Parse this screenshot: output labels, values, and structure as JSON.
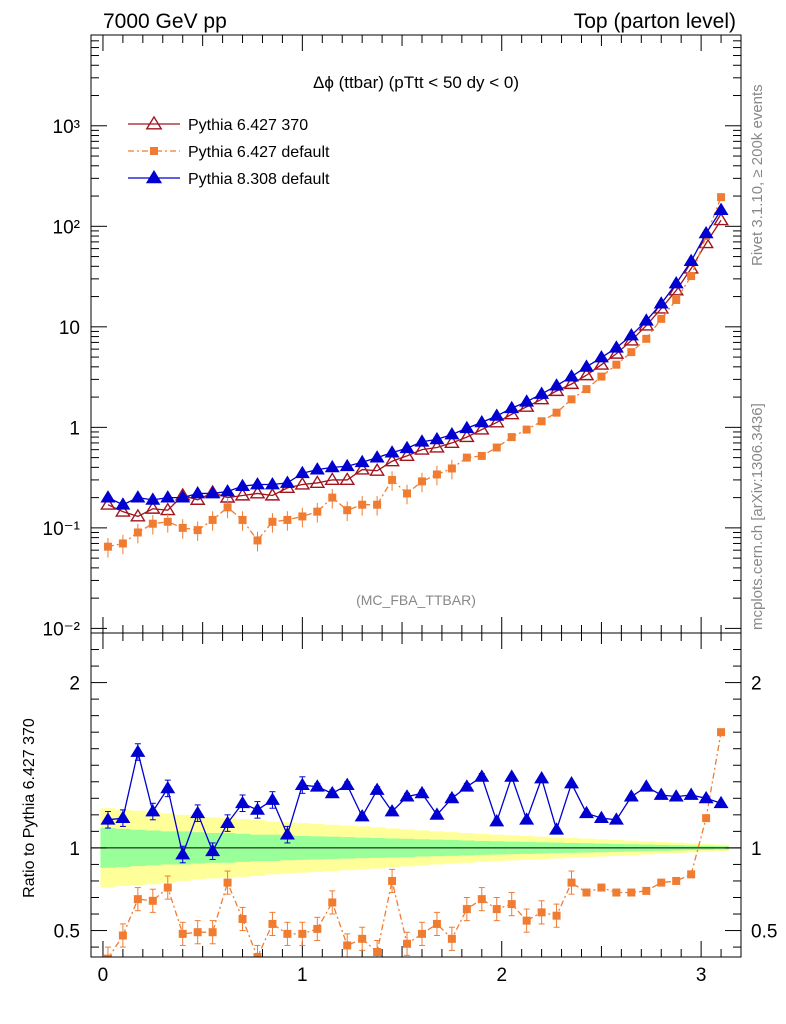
{
  "header": {
    "left": "7000 GeV pp",
    "right": "Top (parton level)"
  },
  "side": {
    "rivet": "Rivet 3.1.10, ≥ 200k events",
    "mcplots": "mcplots.cern.ch [arXiv:1306.3436]"
  },
  "chart_data": [
    {
      "type": "line",
      "title": "Δϕ (ttbar) (pTtt < 50 dy < 0)",
      "annotation": "(MC_FBA_TTBAR)",
      "yscale": "log",
      "xlim": [
        -0.06,
        3.2
      ],
      "ylim": [
        0.009,
        8000
      ],
      "x_ticks": [
        "0",
        "1",
        "2",
        "3"
      ],
      "y_ticks": [
        "10⁻²",
        "10⁻¹",
        "1",
        "10",
        "10²",
        "10³"
      ],
      "legend_position": "top-left",
      "x": [
        0.025,
        0.1,
        0.175,
        0.25,
        0.325,
        0.4,
        0.475,
        0.55,
        0.625,
        0.7,
        0.775,
        0.85,
        0.925,
        1.0,
        1.075,
        1.15,
        1.225,
        1.3,
        1.375,
        1.45,
        1.525,
        1.6,
        1.675,
        1.75,
        1.825,
        1.9,
        1.975,
        2.05,
        2.125,
        2.2,
        2.275,
        2.35,
        2.425,
        2.5,
        2.575,
        2.65,
        2.725,
        2.8,
        2.875,
        2.95,
        3.025,
        3.1
      ],
      "series": [
        {
          "name": "Pythia 6.427 370",
          "color": "#a0141e",
          "marker": "open-triangle",
          "values": [
            0.17,
            0.145,
            0.13,
            0.155,
            0.15,
            0.21,
            0.19,
            0.225,
            0.2,
            0.21,
            0.22,
            0.21,
            0.25,
            0.27,
            0.28,
            0.3,
            0.3,
            0.38,
            0.37,
            0.46,
            0.52,
            0.6,
            0.63,
            0.7,
            0.8,
            0.95,
            1.12,
            1.35,
            1.6,
            1.9,
            2.3,
            2.7,
            3.3,
            4.2,
            5.4,
            7.3,
            10.3,
            15.2,
            23,
            38,
            68,
            115
          ]
        },
        {
          "name": "Pythia 6.427 default",
          "color": "#f07c32",
          "marker": "filled-square",
          "dashed": true,
          "values": [
            0.065,
            0.07,
            0.09,
            0.11,
            0.115,
            0.1,
            0.095,
            0.12,
            0.16,
            0.12,
            0.075,
            0.115,
            0.12,
            0.13,
            0.145,
            0.2,
            0.15,
            0.17,
            0.17,
            0.3,
            0.22,
            0.29,
            0.34,
            0.39,
            0.5,
            0.52,
            0.63,
            0.8,
            0.95,
            1.15,
            1.4,
            1.9,
            2.4,
            3.2,
            4.2,
            5.6,
            7.6,
            12,
            18.5,
            32,
            80,
            195
          ]
        },
        {
          "name": "Pythia 8.308 default",
          "color": "#0000d0",
          "marker": "filled-triangle",
          "values": [
            0.2,
            0.17,
            0.2,
            0.19,
            0.2,
            0.2,
            0.22,
            0.22,
            0.23,
            0.26,
            0.27,
            0.27,
            0.28,
            0.35,
            0.38,
            0.4,
            0.41,
            0.45,
            0.5,
            0.56,
            0.62,
            0.72,
            0.76,
            0.85,
            0.98,
            1.12,
            1.3,
            1.55,
            1.8,
            2.15,
            2.6,
            3.2,
            4,
            4.95,
            6.2,
            8.2,
            11.5,
            17,
            27,
            45,
            85,
            145
          ]
        }
      ]
    },
    {
      "type": "line",
      "ylabel": "Ratio to Pythia 6.427 370",
      "xlim": [
        -0.06,
        3.2
      ],
      "ylim": [
        0.34,
        2.3
      ],
      "x_ticks": [
        "0",
        "1",
        "2",
        "3"
      ],
      "y_ticks": [
        "0.5",
        "1",
        "2"
      ],
      "reference_line": 1,
      "bands": {
        "inner_color": "#99ff99",
        "outer_color": "#ffff99",
        "inner": [
          0.12,
          0.115,
          0.11,
          0.105,
          0.1,
          0.1,
          0.095,
          0.09,
          0.09,
          0.085,
          0.08,
          0.08,
          0.075,
          0.072,
          0.07,
          0.068,
          0.065,
          0.062,
          0.06,
          0.057,
          0.055,
          0.052,
          0.05,
          0.048,
          0.045,
          0.042,
          0.04,
          0.038,
          0.036,
          0.034,
          0.032,
          0.03,
          0.028,
          0.026,
          0.024,
          0.022,
          0.02,
          0.018,
          0.016,
          0.014,
          0.012,
          0.01
        ],
        "outer": [
          0.24,
          0.23,
          0.225,
          0.22,
          0.21,
          0.2,
          0.19,
          0.185,
          0.18,
          0.175,
          0.17,
          0.16,
          0.155,
          0.15,
          0.145,
          0.14,
          0.135,
          0.13,
          0.125,
          0.118,
          0.112,
          0.106,
          0.1,
          0.095,
          0.09,
          0.085,
          0.08,
          0.076,
          0.072,
          0.068,
          0.064,
          0.06,
          0.056,
          0.052,
          0.048,
          0.044,
          0.04,
          0.036,
          0.032,
          0.028,
          0.024,
          0.02
        ]
      },
      "series": [
        {
          "name": "Pythia 6.427 default",
          "color": "#f07c32",
          "marker": "filled-square",
          "dashed": true,
          "values": [
            0.33,
            0.47,
            0.69,
            0.68,
            0.76,
            0.48,
            0.49,
            0.49,
            0.79,
            0.57,
            0.34,
            0.54,
            0.48,
            0.48,
            0.51,
            0.67,
            0.41,
            0.45,
            0.37,
            0.8,
            0.42,
            0.48,
            0.54,
            0.45,
            0.63,
            0.69,
            0.63,
            0.66,
            0.56,
            0.61,
            0.59,
            0.79,
            0.73,
            0.76,
            0.73,
            0.73,
            0.74,
            0.79,
            0.8,
            0.84,
            1.18,
            1.7
          ]
        },
        {
          "name": "Pythia 8.308 default",
          "color": "#0000d0",
          "marker": "filled-triangle",
          "values": [
            1.17,
            1.18,
            1.58,
            1.22,
            1.36,
            0.96,
            1.21,
            0.98,
            1.15,
            1.27,
            1.23,
            1.29,
            1.08,
            1.38,
            1.37,
            1.33,
            1.38,
            1.19,
            1.35,
            1.22,
            1.31,
            1.33,
            1.2,
            1.3,
            1.37,
            1.43,
            1.16,
            1.43,
            1.17,
            1.42,
            1.11,
            1.39,
            1.21,
            1.18,
            1.17,
            1.31,
            1.37,
            1.32,
            1.31,
            1.32,
            1.3,
            1.27
          ]
        }
      ]
    }
  ]
}
